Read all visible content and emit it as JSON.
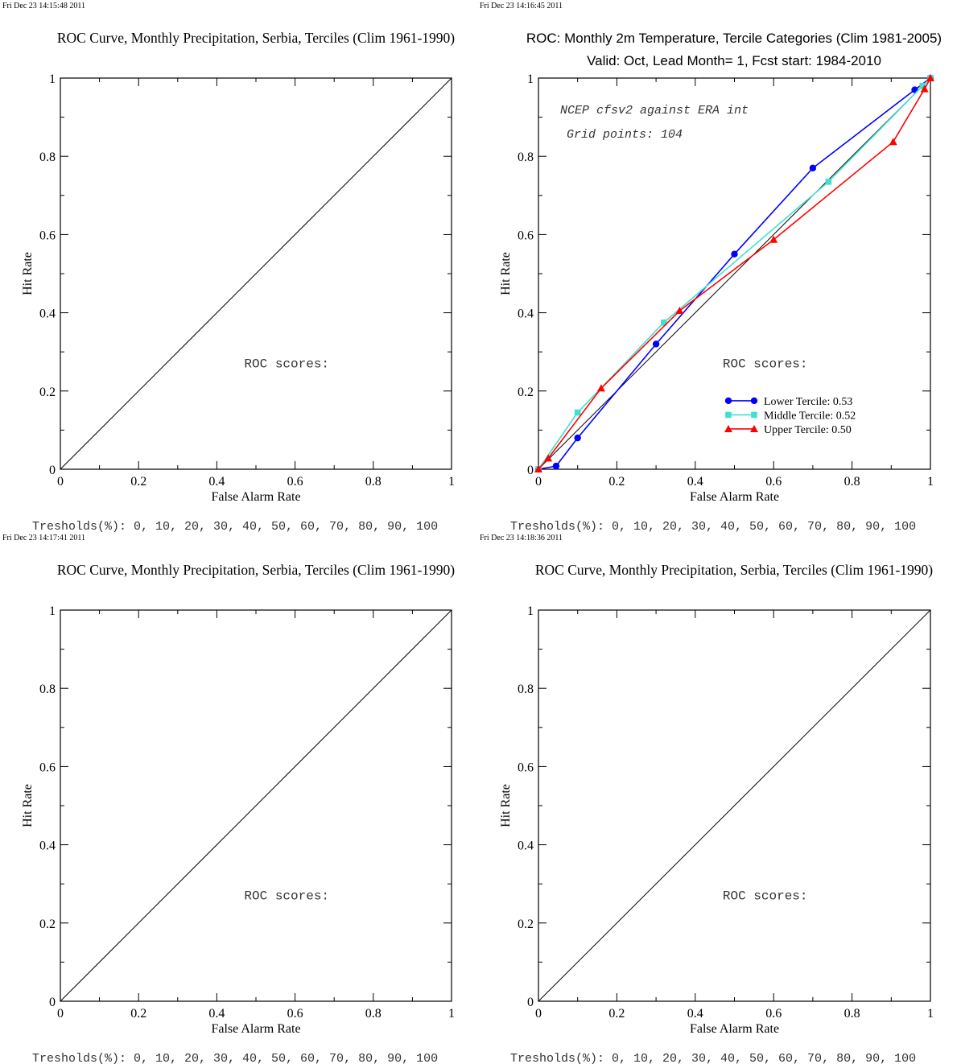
{
  "panels": [
    {
      "timestamp": "Fri Dec 23 14:15:48 2011",
      "title": "ROC Curve, Monthly Precipitation, Serbia, Terciles (Clim 1961-1990)",
      "subtitle": "",
      "score_label": "ROC scores:",
      "thresholds_text": "Tresholds(%): 0, 10, 20, 30, 40, 50, 60, 70, 80, 90, 100",
      "annotations": []
    },
    {
      "timestamp": "Fri Dec 23 14:16:45 2011",
      "title": "ROC: Monthly 2m Temperature, Tercile Categories (Clim 1981-2005)",
      "subtitle": "Valid: Oct, Lead Month= 1, Fcst start: 1984-2010",
      "score_label": "ROC scores:",
      "thresholds_text": "Tresholds(%): 0, 10, 20, 30, 40, 50, 60, 70, 80, 90, 100",
      "annotations": [
        "NCEP cfsv2 against ERA int",
        "Grid points:  104"
      ]
    },
    {
      "timestamp": "Fri Dec 23 14:17:41 2011",
      "title": "ROC Curve, Monthly Precipitation, Serbia, Terciles (Clim 1961-1990)",
      "subtitle": "",
      "score_label": "ROC scores:",
      "thresholds_text": "Tresholds(%): 0, 10, 20, 30, 40, 50, 60, 70, 80, 90, 100",
      "annotations": []
    },
    {
      "timestamp": "Fri Dec 23 14:18:36 2011",
      "title": "ROC Curve, Monthly Precipitation, Serbia, Terciles (Clim 1961-1990)",
      "subtitle": "",
      "score_label": "ROC scores:",
      "thresholds_text": "Tresholds(%): 0, 10, 20, 30, 40, 50, 60, 70, 80, 90, 100",
      "annotations": []
    }
  ],
  "chart_data": [
    {
      "type": "line",
      "title": "ROC Curve, Monthly Precipitation, Serbia, Terciles (Clim 1961-1990)",
      "xlabel": "False Alarm Rate",
      "ylabel": "Hit Rate",
      "xlim": [
        0,
        1
      ],
      "ylim": [
        0,
        1
      ],
      "x_ticks": [
        "0",
        "0.2",
        "0.4",
        "0.6",
        "0.8",
        "1"
      ],
      "y_ticks": [
        "0",
        "0.2",
        "0.4",
        "0.6",
        "0.8",
        "1"
      ],
      "reference_line": {
        "x": [
          0,
          1
        ],
        "y": [
          0,
          1
        ],
        "color": "#000000"
      },
      "series": []
    },
    {
      "type": "line",
      "title": "ROC: Monthly 2m Temperature, Tercile Categories (Clim 1981-2005)",
      "subtitle": "Valid: Oct, Lead Month= 1, Fcst start: 1984-2010",
      "xlabel": "False Alarm Rate",
      "ylabel": "Hit Rate",
      "xlim": [
        0,
        1
      ],
      "ylim": [
        0,
        1
      ],
      "x_ticks": [
        "0",
        "0.2",
        "0.4",
        "0.6",
        "0.8",
        "1"
      ],
      "y_ticks": [
        "0",
        "0.2",
        "0.4",
        "0.6",
        "0.8",
        "1"
      ],
      "reference_line": {
        "x": [
          0,
          1
        ],
        "y": [
          0,
          1
        ],
        "color": "#000000"
      },
      "legend_position": "lower-right",
      "series": [
        {
          "name": "Lower Tercile: 0.53",
          "color": "#0000ff",
          "marker": "circle",
          "x": [
            0.0,
            0.045,
            0.1,
            0.3,
            0.5,
            0.7,
            0.96,
            1.0
          ],
          "y": [
            0.0,
            0.008,
            0.08,
            0.32,
            0.55,
            0.77,
            0.97,
            1.0
          ]
        },
        {
          "name": "Middle Tercile: 0.52",
          "color": "#40e0d0",
          "marker": "square",
          "x": [
            0.0,
            0.1,
            0.32,
            0.74,
            0.98,
            1.0
          ],
          "y": [
            0.0,
            0.145,
            0.375,
            0.735,
            0.98,
            1.0
          ]
        },
        {
          "name": "Upper Tercile: 0.50",
          "color": "#ff0000",
          "marker": "triangle",
          "x": [
            0.0,
            0.025,
            0.16,
            0.36,
            0.6,
            0.905,
            0.985,
            1.0
          ],
          "y": [
            0.0,
            0.028,
            0.207,
            0.405,
            0.587,
            0.837,
            0.972,
            1.0
          ]
        }
      ]
    },
    {
      "type": "line",
      "title": "ROC Curve, Monthly Precipitation, Serbia, Terciles (Clim 1961-1990)",
      "xlabel": "False Alarm Rate",
      "ylabel": "Hit Rate",
      "xlim": [
        0,
        1
      ],
      "ylim": [
        0,
        1
      ],
      "x_ticks": [
        "0",
        "0.2",
        "0.4",
        "0.6",
        "0.8",
        "1"
      ],
      "y_ticks": [
        "0",
        "0.2",
        "0.4",
        "0.6",
        "0.8",
        "1"
      ],
      "reference_line": {
        "x": [
          0,
          1
        ],
        "y": [
          0,
          1
        ],
        "color": "#000000"
      },
      "series": []
    },
    {
      "type": "line",
      "title": "ROC Curve, Monthly Precipitation, Serbia, Terciles (Clim 1961-1990)",
      "xlabel": "False Alarm Rate",
      "ylabel": "Hit Rate",
      "xlim": [
        0,
        1
      ],
      "ylim": [
        0,
        1
      ],
      "x_ticks": [
        "0",
        "0.2",
        "0.4",
        "0.6",
        "0.8",
        "1"
      ],
      "y_ticks": [
        "0",
        "0.2",
        "0.4",
        "0.6",
        "0.8",
        "1"
      ],
      "reference_line": {
        "x": [
          0,
          1
        ],
        "y": [
          0,
          1
        ],
        "color": "#000000"
      },
      "series": []
    }
  ]
}
